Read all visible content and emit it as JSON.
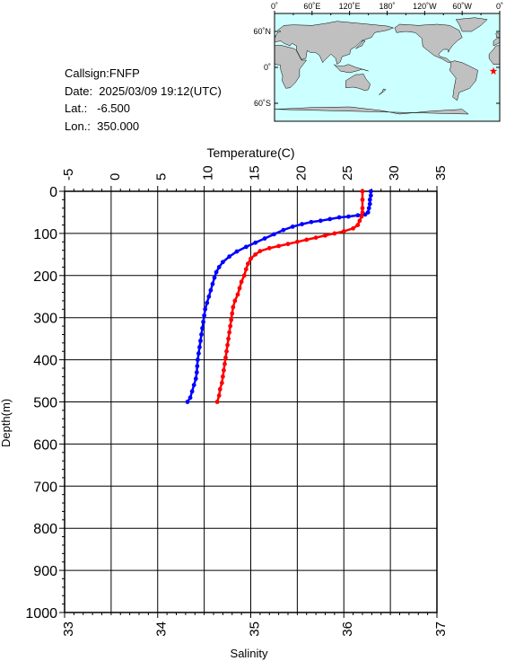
{
  "info": {
    "callsign": "Callsign:FNFP",
    "date": "Date:  2025/03/09 19:12(UTC)",
    "lat": "Lat.:   -6.500",
    "lon": "Lon.:  350.000"
  },
  "map": {
    "top_labels": [
      "0˚",
      "60˚E",
      "120˚E",
      "180˚",
      "120˚W",
      "60˚W",
      "0˚"
    ],
    "side_labels": [
      "60˚N",
      "0˚",
      "60˚S"
    ],
    "ocean_color": "#ccffff",
    "land_color": "#c0c0c0",
    "marker": {
      "lon": 350.0,
      "lat": -6.5,
      "color": "#ff0000",
      "symbol": "star"
    }
  },
  "chart_data": {
    "type": "line",
    "top_axis_label": "Temperature(C)",
    "bottom_axis_label": "Salinity",
    "y_axis_label": "Depth(m)",
    "temperature_ticks": [
      "-5",
      "0",
      "5",
      "10",
      "15",
      "20",
      "25",
      "30",
      "35"
    ],
    "salinity_ticks": [
      "33",
      "34",
      "35",
      "36",
      "37"
    ],
    "depth_ticks": [
      "0",
      "100",
      "200",
      "300",
      "400",
      "500",
      "600",
      "700",
      "800",
      "900",
      "1000"
    ],
    "temperature_range": [
      -5,
      35
    ],
    "salinity_range": [
      33,
      37
    ],
    "depth_range": [
      0,
      1000
    ],
    "grid": true,
    "series": [
      {
        "axis": "temperature",
        "color": "#0000ff",
        "points": [
          [
            27.9,
            0
          ],
          [
            27.9,
            10
          ],
          [
            27.8,
            20
          ],
          [
            27.8,
            30
          ],
          [
            27.7,
            40
          ],
          [
            27.6,
            50
          ],
          [
            27.3,
            55
          ],
          [
            26.5,
            57
          ],
          [
            25.5,
            60
          ],
          [
            24.5,
            62
          ],
          [
            23.5,
            66
          ],
          [
            22.5,
            70
          ],
          [
            21.5,
            73
          ],
          [
            20.5,
            78
          ],
          [
            19.5,
            84
          ],
          [
            18.5,
            92
          ],
          [
            17.5,
            102
          ],
          [
            16.5,
            112
          ],
          [
            15.5,
            122
          ],
          [
            14.5,
            132
          ],
          [
            13.5,
            143
          ],
          [
            12.7,
            155
          ],
          [
            12.0,
            168
          ],
          [
            11.6,
            180
          ],
          [
            11.3,
            192
          ],
          [
            11.1,
            205
          ],
          [
            10.9,
            220
          ],
          [
            10.7,
            235
          ],
          [
            10.5,
            250
          ],
          [
            10.3,
            265
          ],
          [
            10.1,
            280
          ],
          [
            10.0,
            295
          ],
          [
            9.9,
            310
          ],
          [
            9.8,
            325
          ],
          [
            9.7,
            340
          ],
          [
            9.6,
            355
          ],
          [
            9.5,
            370
          ],
          [
            9.4,
            385
          ],
          [
            9.3,
            400
          ],
          [
            9.25,
            415
          ],
          [
            9.2,
            430
          ],
          [
            9.1,
            445
          ],
          [
            8.9,
            460
          ],
          [
            8.7,
            475
          ],
          [
            8.5,
            490
          ],
          [
            8.2,
            500
          ]
        ]
      },
      {
        "axis": "salinity",
        "color": "#ff0000",
        "points": [
          [
            36.2,
            0
          ],
          [
            36.2,
            20
          ],
          [
            36.2,
            40
          ],
          [
            36.2,
            50
          ],
          [
            36.19,
            60
          ],
          [
            36.17,
            70
          ],
          [
            36.15,
            80
          ],
          [
            36.1,
            88
          ],
          [
            36.0,
            95
          ],
          [
            35.9,
            100
          ],
          [
            35.8,
            105
          ],
          [
            35.7,
            110
          ],
          [
            35.6,
            115
          ],
          [
            35.5,
            120
          ],
          [
            35.4,
            125
          ],
          [
            35.3,
            130
          ],
          [
            35.2,
            135
          ],
          [
            35.1,
            142
          ],
          [
            35.05,
            150
          ],
          [
            35.0,
            160
          ],
          [
            34.97,
            172
          ],
          [
            34.95,
            185
          ],
          [
            34.93,
            200
          ],
          [
            34.9,
            215
          ],
          [
            34.88,
            230
          ],
          [
            34.86,
            245
          ],
          [
            34.83,
            260
          ],
          [
            34.81,
            275
          ],
          [
            34.8,
            290
          ],
          [
            34.79,
            305
          ],
          [
            34.78,
            320
          ],
          [
            34.77,
            335
          ],
          [
            34.76,
            350
          ],
          [
            34.75,
            365
          ],
          [
            34.74,
            380
          ],
          [
            34.73,
            395
          ],
          [
            34.72,
            410
          ],
          [
            34.71,
            425
          ],
          [
            34.7,
            440
          ],
          [
            34.69,
            455
          ],
          [
            34.67,
            470
          ],
          [
            34.66,
            485
          ],
          [
            34.64,
            500
          ]
        ]
      }
    ]
  }
}
